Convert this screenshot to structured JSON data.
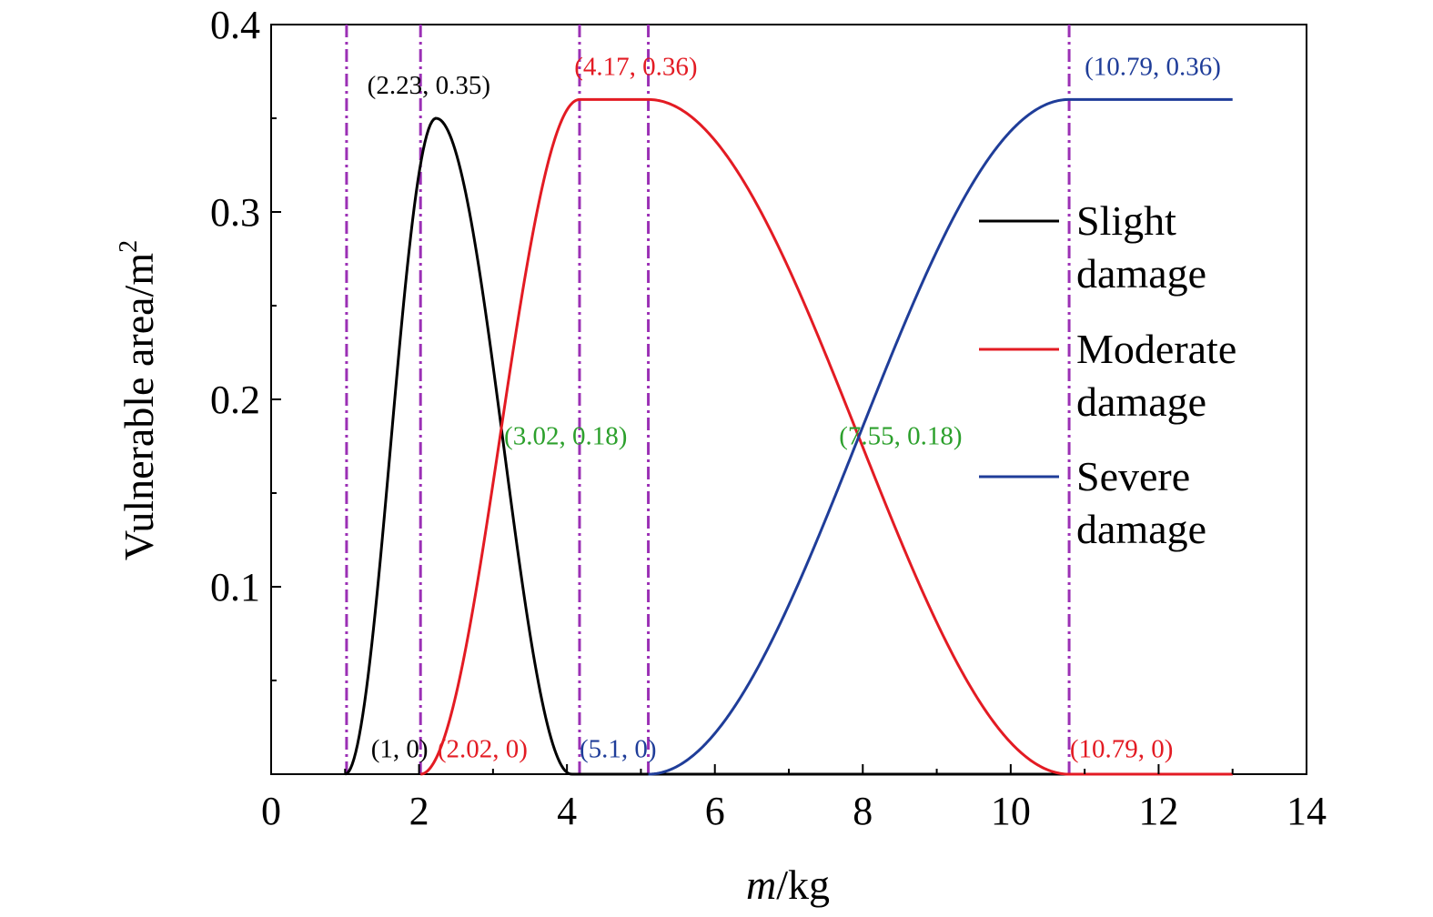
{
  "chart_data": {
    "type": "line",
    "xlabel_italic": "m",
    "xlabel_unit": "/kg",
    "ylabel_base": "Vulnerable area/m",
    "ylabel_sup": "2",
    "xlim": [
      0,
      14
    ],
    "ylim": [
      0,
      0.4
    ],
    "x_ticks": [
      "0",
      "2",
      "4",
      "6",
      "8",
      "10",
      "12",
      "14"
    ],
    "x_tick_values": [
      0,
      2,
      4,
      6,
      8,
      10,
      12,
      14
    ],
    "y_ticks": [
      "0.1",
      "0.2",
      "0.3",
      "0.4"
    ],
    "y_tick_values": [
      0.1,
      0.2,
      0.3,
      0.4
    ],
    "grid": false,
    "legend_position": "right",
    "series": [
      {
        "name": "Slight damage",
        "legend_lines": [
          "Slight",
          "damage"
        ],
        "color": "#000000",
        "shape": "bell",
        "start": 1,
        "peak_x": 2.23,
        "peak_y": 0.35,
        "end": 4.06,
        "x_max": 13
      },
      {
        "name": "Moderate damage",
        "legend_lines": [
          "Moderate",
          "damage"
        ],
        "color": "#e31b23",
        "shape": "plateau",
        "start": 2.02,
        "plateau_start": 4.17,
        "plateau_end": 5.1,
        "end": 10.79,
        "peak_y": 0.36,
        "x_max": 13
      },
      {
        "name": "Severe damage",
        "legend_lines": [
          "Severe",
          "damage"
        ],
        "color": "#1f3d99",
        "shape": "rise",
        "start": 5.1,
        "plateau_start": 10.79,
        "peak_y": 0.36,
        "x_max": 13
      }
    ],
    "vlines": {
      "color": "#9b30b5",
      "x": [
        1.02,
        2.02,
        4.17,
        5.1,
        10.79
      ]
    },
    "annotations": [
      {
        "text": "(2.23, 0.35)",
        "x": 1.3,
        "y": 0.363,
        "color": "#000000"
      },
      {
        "text": "(4.17, 0.36)",
        "x": 4.1,
        "y": 0.373,
        "color": "#e31b23"
      },
      {
        "text": "(10.79, 0.36)",
        "x": 11.0,
        "y": 0.373,
        "color": "#1f3d99"
      },
      {
        "text": "(3.02, 0.18)",
        "x": 3.15,
        "y": 0.176,
        "color": "#2ca02c"
      },
      {
        "text": "(7.55, 0.18)",
        "x": 7.68,
        "y": 0.176,
        "color": "#2ca02c"
      },
      {
        "text": "(1, 0)",
        "x": 1.35,
        "y": 0.009,
        "color": "#000000"
      },
      {
        "text": "(2.02, 0)",
        "x": 2.25,
        "y": 0.009,
        "color": "#e31b23"
      },
      {
        "text": "(5.1, 0)",
        "x": 4.17,
        "y": 0.009,
        "color": "#1f3d99"
      },
      {
        "text": "(10.79, 0)",
        "x": 10.8,
        "y": 0.009,
        "color": "#e31b23"
      }
    ]
  }
}
